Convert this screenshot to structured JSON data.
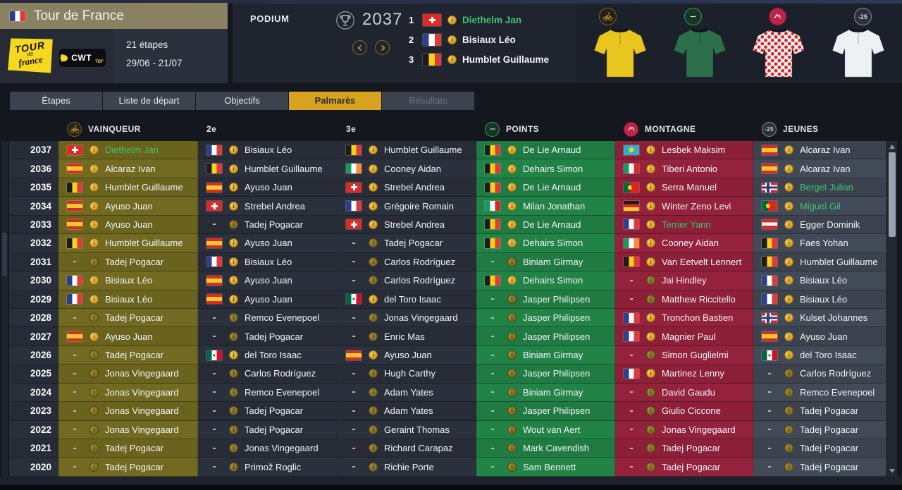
{
  "header": {
    "title": "Tour de France",
    "flag": "fr",
    "stages_count": "21 étapes",
    "dates": "29/06 - 21/07",
    "tdf_logo": {
      "word1": "TOUR",
      "word2": "de",
      "word3": "france"
    },
    "cwt_logo": {
      "word1": "CWT",
      "word2": "TDF"
    }
  },
  "podium": {
    "label": "PODIUM",
    "year": "2037",
    "entries": [
      {
        "rank": "1",
        "flag": "ch",
        "name": "Diethelm Jan",
        "highlight": true
      },
      {
        "rank": "2",
        "flag": "fr",
        "name": "Bisiaux Léo",
        "highlight": false
      },
      {
        "rank": "3",
        "flag": "be",
        "name": "Humblet Guillaume",
        "highlight": false
      }
    ]
  },
  "jerseys": [
    {
      "type": "yellow",
      "icon": "cyclist",
      "color": "#e8c51f",
      "dots": ""
    },
    {
      "type": "green",
      "icon": "points",
      "color": "#2e6f4b",
      "dots": ""
    },
    {
      "type": "polka",
      "icon": "mountain",
      "color": "#f4f4f2",
      "dots": "#d8232a"
    },
    {
      "type": "white",
      "icon": "youth",
      "color": "#eef0f3",
      "dots": ""
    }
  ],
  "icons": {
    "youth_label": "-25",
    "medal_glyph": "i"
  },
  "tabs": [
    {
      "label": "Étapes",
      "state": "normal"
    },
    {
      "label": "Liste de départ",
      "state": "normal"
    },
    {
      "label": "Objectifs",
      "state": "normal"
    },
    {
      "label": "Palmarès",
      "state": "active"
    },
    {
      "label": "Résultats",
      "state": "disabled"
    }
  ],
  "colors": {
    "accent_gold": "#d7a31e",
    "highlight_green": "#3ec46f",
    "vainqueur_olive": "#6a631d",
    "points_green": "#1f7b41",
    "montagne_red": "#8d1f38",
    "jeunes_slate": "#3c434f",
    "title_khaki": "#8a8162"
  },
  "table": {
    "columns": {
      "vainqueur": "VAINQUEUR",
      "second": "2e",
      "third": "3e",
      "points": "POINTS",
      "montagne": "MONTAGNE",
      "jeunes": "JEUNES"
    },
    "rows": [
      {
        "year": "2037",
        "vainqueur": {
          "flag": "ch",
          "name": "Diethelm Jan",
          "green": true
        },
        "second": {
          "flag": "fr",
          "name": "Bisiaux Léo"
        },
        "third": {
          "flag": "be",
          "name": "Humblet Guillaume"
        },
        "points": {
          "flag": "be",
          "name": "De Lie Arnaud"
        },
        "montagne": {
          "flag": "kz",
          "name": "Lesbek Maksim"
        },
        "jeunes": {
          "flag": "es",
          "name": "Alcaraz Ivan"
        }
      },
      {
        "year": "2036",
        "vainqueur": {
          "flag": "es",
          "name": "Alcaraz Ivan"
        },
        "second": {
          "flag": "be",
          "name": "Humblet Guillaume"
        },
        "third": {
          "flag": "ie",
          "name": "Cooney Aidan"
        },
        "points": {
          "flag": "be",
          "name": "Dehairs Simon"
        },
        "montagne": {
          "flag": "it",
          "name": "Tiberi Antonio"
        },
        "jeunes": {
          "flag": "es",
          "name": "Alcaraz Ivan"
        }
      },
      {
        "year": "2035",
        "vainqueur": {
          "flag": "be",
          "name": "Humblet Guillaume"
        },
        "second": {
          "flag": "es",
          "name": "Ayuso Juan"
        },
        "third": {
          "flag": "ch",
          "name": "Strebel Andrea"
        },
        "points": {
          "flag": "be",
          "name": "De Lie Arnaud"
        },
        "montagne": {
          "flag": "pt",
          "name": "Serra Manuel"
        },
        "jeunes": {
          "flag": "no",
          "name": "Berget Julian",
          "green": true
        }
      },
      {
        "year": "2034",
        "vainqueur": {
          "flag": "es",
          "name": "Ayuso Juan"
        },
        "second": {
          "flag": "ch",
          "name": "Strebel Andrea"
        },
        "third": {
          "flag": "fr",
          "name": "Grégoire Romain"
        },
        "points": {
          "flag": "it",
          "name": "Milan Jonathan"
        },
        "montagne": {
          "flag": "de",
          "name": "Winter Zeno Levi"
        },
        "jeunes": {
          "flag": "pt",
          "name": "Miguel Gil",
          "green": true
        }
      },
      {
        "year": "2033",
        "vainqueur": {
          "flag": "es",
          "name": "Ayuso Juan"
        },
        "second": {
          "flag": "-",
          "name": "Tadej Pogacar"
        },
        "third": {
          "flag": "ch",
          "name": "Strebel Andrea"
        },
        "points": {
          "flag": "be",
          "name": "De Lie Arnaud"
        },
        "montagne": {
          "flag": "fr",
          "name": "Terrier Yann",
          "green": true
        },
        "jeunes": {
          "flag": "at",
          "name": "Egger Dominik"
        }
      },
      {
        "year": "2032",
        "vainqueur": {
          "flag": "be",
          "name": "Humblet Guillaume"
        },
        "second": {
          "flag": "es",
          "name": "Ayuso Juan"
        },
        "third": {
          "flag": "-",
          "name": "Tadej Pogacar"
        },
        "points": {
          "flag": "be",
          "name": "Dehairs Simon"
        },
        "montagne": {
          "flag": "ie",
          "name": "Cooney Aidan"
        },
        "jeunes": {
          "flag": "be",
          "name": "Faes Yohan"
        }
      },
      {
        "year": "2031",
        "vainqueur": {
          "flag": "-",
          "name": "Tadej Pogacar"
        },
        "second": {
          "flag": "fr",
          "name": "Bisiaux Léo"
        },
        "third": {
          "flag": "-",
          "name": "Carlos Rodríguez"
        },
        "points": {
          "flag": "-",
          "name": "Biniam Girmay"
        },
        "montagne": {
          "flag": "be",
          "name": "Van Eetvelt Lennert"
        },
        "jeunes": {
          "flag": "be",
          "name": "Humblet Guillaume"
        }
      },
      {
        "year": "2030",
        "vainqueur": {
          "flag": "fr",
          "name": "Bisiaux Léo"
        },
        "second": {
          "flag": "es",
          "name": "Ayuso Juan"
        },
        "third": {
          "flag": "-",
          "name": "Carlos Rodríguez"
        },
        "points": {
          "flag": "be",
          "name": "Dehairs Simon"
        },
        "montagne": {
          "flag": "-",
          "name": "Jai Hindley"
        },
        "jeunes": {
          "flag": "fr",
          "name": "Bisiaux Léo"
        }
      },
      {
        "year": "2029",
        "vainqueur": {
          "flag": "fr",
          "name": "Bisiaux Léo"
        },
        "second": {
          "flag": "es",
          "name": "Ayuso Juan"
        },
        "third": {
          "flag": "mx",
          "name": "del Toro Isaac"
        },
        "points": {
          "flag": "-",
          "name": "Jasper Philipsen"
        },
        "montagne": {
          "flag": "-",
          "name": "Matthew Riccitello"
        },
        "jeunes": {
          "flag": "fr",
          "name": "Bisiaux Léo"
        }
      },
      {
        "year": "2028",
        "vainqueur": {
          "flag": "-",
          "name": "Tadej Pogacar"
        },
        "second": {
          "flag": "-",
          "name": "Remco Evenepoel"
        },
        "third": {
          "flag": "-",
          "name": "Jonas Vingegaard"
        },
        "points": {
          "flag": "-",
          "name": "Jasper Philipsen"
        },
        "montagne": {
          "flag": "fr",
          "name": "Tronchon Bastien"
        },
        "jeunes": {
          "flag": "no",
          "name": "Kulset Johannes"
        }
      },
      {
        "year": "2027",
        "vainqueur": {
          "flag": "es",
          "name": "Ayuso Juan"
        },
        "second": {
          "flag": "-",
          "name": "Tadej Pogacar"
        },
        "third": {
          "flag": "-",
          "name": "Enric Mas"
        },
        "points": {
          "flag": "-",
          "name": "Jasper Philipsen"
        },
        "montagne": {
          "flag": "fr",
          "name": "Magnier Paul"
        },
        "jeunes": {
          "flag": "es",
          "name": "Ayuso Juan"
        }
      },
      {
        "year": "2026",
        "vainqueur": {
          "flag": "-",
          "name": "Tadej Pogacar"
        },
        "second": {
          "flag": "mx",
          "name": "del Toro Isaac"
        },
        "third": {
          "flag": "es",
          "name": "Ayuso Juan"
        },
        "points": {
          "flag": "-",
          "name": "Biniam Girmay"
        },
        "montagne": {
          "flag": "-",
          "name": "Simon Guglielmi"
        },
        "jeunes": {
          "flag": "mx",
          "name": "del Toro Isaac"
        }
      },
      {
        "year": "2025",
        "vainqueur": {
          "flag": "-",
          "name": "Jonas Vingegaard"
        },
        "second": {
          "flag": "-",
          "name": "Carlos Rodríguez"
        },
        "third": {
          "flag": "-",
          "name": "Hugh Carthy"
        },
        "points": {
          "flag": "-",
          "name": "Jasper Philipsen"
        },
        "montagne": {
          "flag": "fr",
          "name": "Martinez Lenny"
        },
        "jeunes": {
          "flag": "-",
          "name": "Carlos Rodríguez"
        }
      },
      {
        "year": "2024",
        "vainqueur": {
          "flag": "-",
          "name": "Jonas Vingegaard"
        },
        "second": {
          "flag": "-",
          "name": "Remco Evenepoel"
        },
        "third": {
          "flag": "-",
          "name": "Adam Yates"
        },
        "points": {
          "flag": "-",
          "name": "Biniam Girmay"
        },
        "montagne": {
          "flag": "-",
          "name": "David Gaudu"
        },
        "jeunes": {
          "flag": "-",
          "name": "Remco Evenepoel"
        }
      },
      {
        "year": "2023",
        "vainqueur": {
          "flag": "-",
          "name": "Jonas Vingegaard"
        },
        "second": {
          "flag": "-",
          "name": "Tadej Pogacar"
        },
        "third": {
          "flag": "-",
          "name": "Adam Yates"
        },
        "points": {
          "flag": "-",
          "name": "Jasper Philipsen"
        },
        "montagne": {
          "flag": "-",
          "name": "Giulio Ciccone"
        },
        "jeunes": {
          "flag": "-",
          "name": "Tadej Pogacar"
        }
      },
      {
        "year": "2022",
        "vainqueur": {
          "flag": "-",
          "name": "Jonas Vingegaard"
        },
        "second": {
          "flag": "-",
          "name": "Tadej Pogacar"
        },
        "third": {
          "flag": "-",
          "name": "Geraint Thomas"
        },
        "points": {
          "flag": "-",
          "name": "Wout van Aert"
        },
        "montagne": {
          "flag": "-",
          "name": "Jonas Vingegaard"
        },
        "jeunes": {
          "flag": "-",
          "name": "Tadej Pogacar"
        }
      },
      {
        "year": "2021",
        "vainqueur": {
          "flag": "-",
          "name": "Tadej Pogacar"
        },
        "second": {
          "flag": "-",
          "name": "Jonas Vingegaard"
        },
        "third": {
          "flag": "-",
          "name": "Richard Carapaz"
        },
        "points": {
          "flag": "-",
          "name": "Mark Cavendish"
        },
        "montagne": {
          "flag": "-",
          "name": "Tadej Pogacar"
        },
        "jeunes": {
          "flag": "-",
          "name": "Tadej Pogacar"
        }
      },
      {
        "year": "2020",
        "vainqueur": {
          "flag": "-",
          "name": "Tadej Pogacar"
        },
        "second": {
          "flag": "-",
          "name": "Primož Roglic"
        },
        "third": {
          "flag": "-",
          "name": "Richie Porte"
        },
        "points": {
          "flag": "-",
          "name": "Sam Bennett"
        },
        "montagne": {
          "flag": "-",
          "name": "Tadej Pogacar"
        },
        "jeunes": {
          "flag": "-",
          "name": "Tadej Pogacar"
        }
      }
    ]
  }
}
